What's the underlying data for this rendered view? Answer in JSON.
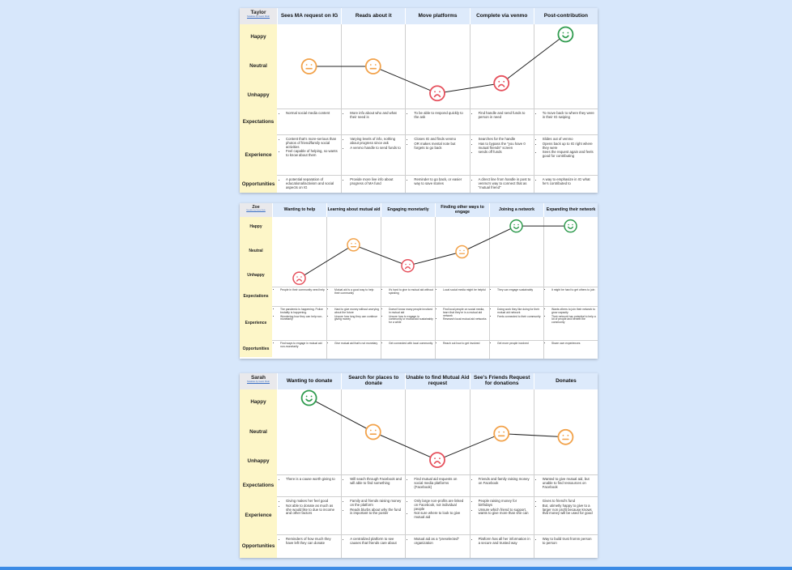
{
  "maps": [
    {
      "persona": "Taylor",
      "credit": "Notables by Gavin Shah",
      "stages": [
        "Sees MA request on IG",
        "Reads about it",
        "Move platforms",
        "Complete via venmo",
        "Post-contribution"
      ],
      "emotion_labels": [
        "Happy",
        "Neutral",
        "Unhappy"
      ],
      "emotions": [
        "neutral",
        "neutral",
        "unhappy",
        "unhappy",
        "happy"
      ],
      "emotion_levels": [
        0.5,
        0.5,
        0.18,
        0.3,
        0.88
      ],
      "rows": [
        {
          "label": "Expectations",
          "cells": [
            [
              "Normal social media content"
            ],
            [
              "More info about who and what their need is"
            ],
            [
              "To be able to respond quickly to the ask"
            ],
            [
              "Find handle and send funds to person in need"
            ],
            [
              "To move back to where they were in their IG swiping"
            ]
          ]
        },
        {
          "label": "Experience",
          "cells": [
            [
              "Content that's more-serious than photos of friend/family social activities",
              "Feel capable of helping, so wants to know about them"
            ],
            [
              "Varying levels of info, nothing about progress since ask",
              "A venmo handle to send funds to"
            ],
            [
              "Closes IG and finds venmo",
              "OR makes mental note but forgets to go back"
            ],
            [
              "Searches for the handle",
              "Has to bypass the \"you have 0 mutual friends\" screen",
              "sends off funds"
            ],
            [
              "Slides out of venmo",
              "Opens back up to IG right where they were",
              "Sees the request again and feels good for contributing"
            ]
          ]
        },
        {
          "label": "Opportunities",
          "cells": [
            [
              "A potential separation of educational/activism and social aspects on IG"
            ],
            [
              "Provide more live info about progress of MA fund"
            ],
            [
              "Reminder to go back, or easier way to save stories"
            ],
            [
              "A direct line from handle in post to venmo's way to connect that as \"mutual friend\""
            ],
            [
              "A way to emphasize in IG what he's contributed to"
            ]
          ]
        }
      ]
    },
    {
      "persona": "Zoe",
      "credit": "Notables by Gavin Shah",
      "stages": [
        "Wanting to help",
        "Learning about mutual aid",
        "Engaging monetarily",
        "Finding other ways to engage",
        "Joining a network",
        "Expanding their network"
      ],
      "emotion_labels": [
        "Happy",
        "Neutral",
        "Unhappy"
      ],
      "emotions": [
        "unhappy",
        "neutral",
        "unhappy",
        "neutral",
        "happy",
        "happy"
      ],
      "emotion_levels": [
        0.12,
        0.6,
        0.3,
        0.5,
        0.87,
        0.87
      ],
      "rows": [
        {
          "label": "Expectations",
          "cells": [
            [
              "People in their community need help"
            ],
            [
              "Mutual aid is a good way to help their community"
            ],
            [
              "It's hard to give to mutual aid without spiraling"
            ],
            [
              "Local social media might be helpful"
            ],
            [
              "They can engage sustainably"
            ],
            [
              "It might be hard to get others to join"
            ]
          ]
        },
        {
          "label": "Experience",
          "cells": [
            [
              "The pandemic is happening. Police brutality is happening.",
              "Wondering how they can help non-monetarily"
            ],
            [
              "Hard to give money without worrying about the future",
              "Unsure how long they can continue giving money"
            ],
            [
              "Doesn't know many people involved in mutual aid",
              "Unsure how to engage in community or mutual aid sustainably for a while"
            ],
            [
              "Find local people on social media, learn that they're in a mutual aid network",
              "Research local mutual aid networks"
            ],
            [
              "Doing work they like doing for their mutual aid network",
              "Feels connected to their community"
            ],
            [
              "Wants others to join their network to grow capacity",
              "Their network has potential to help a lot of people and benefit the community"
            ]
          ]
        },
        {
          "label": "Opportunities",
          "cells": [
            [
              "Find ways to engage in mutual aid non-monetarily"
            ],
            [
              "Give mutual aid that's not monetary"
            ],
            [
              "Get connected with local community"
            ],
            [
              "Reach out how to get involved"
            ],
            [
              "Get more people involved"
            ],
            [
              "Share own experiences"
            ]
          ]
        }
      ]
    },
    {
      "persona": "Sarah",
      "credit": "Notables by Gavin Shah",
      "stages": [
        "Wanting to donate",
        "Search for places to donate",
        "Unable to find Mutual Aid request",
        "See's Friends Request for donations",
        "Donates"
      ],
      "emotion_labels": [
        "Happy",
        "Neutral",
        "Unhappy"
      ],
      "emotions": [
        "happy",
        "neutral",
        "unhappy",
        "neutral",
        "neutral"
      ],
      "emotion_levels": [
        0.9,
        0.5,
        0.17,
        0.48,
        0.44
      ],
      "rows": [
        {
          "label": "Expectations",
          "cells": [
            [
              "There is a cause worth giving to"
            ],
            [
              "Will seach through Facebook and will able to find something"
            ],
            [
              "Find mutual aid requests on social media platforms (Facebook)"
            ],
            [
              "Friends and family raising money on Facebook"
            ],
            [
              "Wanted to give mutual aid, but unable to find ressources on Facebook"
            ]
          ]
        },
        {
          "label": "Experience",
          "cells": [
            [
              "Giving makes her feel good",
              "Not able to donate as much as she would like to due to income and other factors"
            ],
            [
              "Family and friends raising money on the platform",
              "Reads blurbs about why the fund is important to the poster"
            ],
            [
              "Only large non-profits are linked on Facebook, not individual people",
              "Not sure where to look to give mutual aid"
            ],
            [
              "People raising money for birthdays",
              "Unsure which friend to support, wants to give more than she can"
            ],
            [
              "Gives to friend's fund",
              "But, utimetly happy to give to a larger non profit because knows that money will be used for good"
            ]
          ]
        },
        {
          "label": "Opportunities",
          "cells": [
            [
              "Reminders of how much they have left they can donate"
            ],
            [
              "A centralized platform to see causes that friends care about"
            ],
            [
              "Mutual aid as a \"preselected\" organization"
            ],
            [
              "Platform has all her information in a secure and trusted way"
            ],
            [
              "Way to build trust fromm person to person"
            ]
          ]
        }
      ]
    }
  ]
}
